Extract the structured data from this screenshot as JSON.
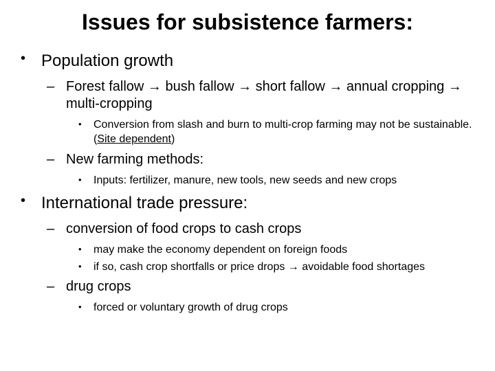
{
  "title": "Issues for subsistence farmers:",
  "items": [
    {
      "text": "Population growth",
      "children": [
        {
          "text": "Forest fallow → bush fallow → short fallow → annual cropping → multi-cropping",
          "children": [
            {
              "text_html": "Conversion from slash and burn to multi-crop farming may not be sustainable. (<span class=\"underline\">Site dependent</span>)"
            }
          ]
        },
        {
          "text": "New farming methods:",
          "children": [
            {
              "text": "Inputs: fertilizer, manure, new tools, new seeds and new crops"
            }
          ]
        }
      ]
    },
    {
      "text": "International trade pressure:",
      "children": [
        {
          "text": "conversion of food crops to cash crops",
          "children": [
            {
              "text": "may make the economy dependent on foreign foods"
            },
            {
              "text": "if so, cash crop shortfalls or price drops → avoidable food shortages"
            }
          ]
        },
        {
          "text": "drug crops",
          "children": [
            {
              "text": "forced or voluntary growth of drug crops"
            }
          ]
        }
      ]
    }
  ]
}
